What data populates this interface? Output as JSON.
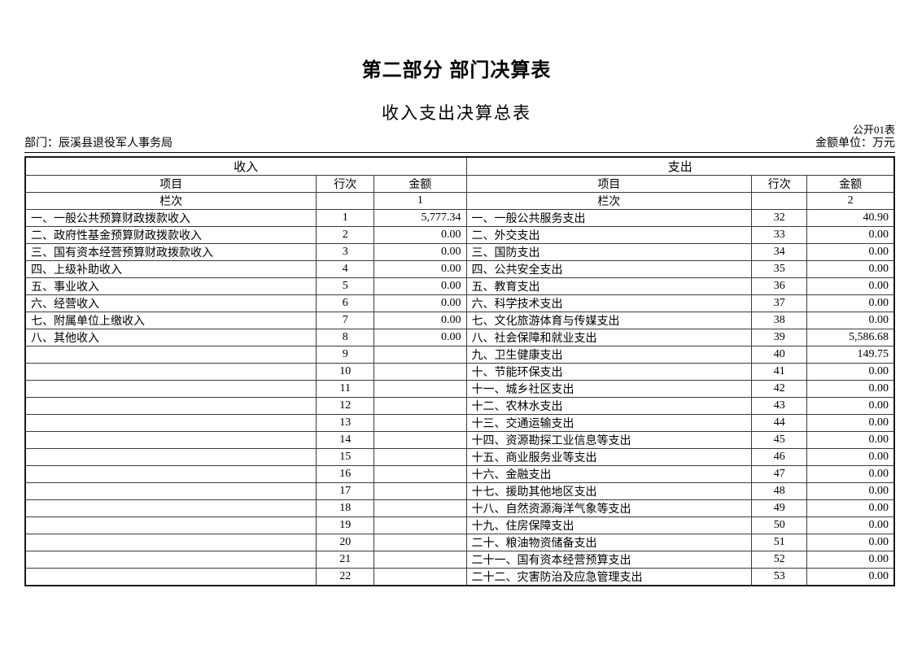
{
  "page": {
    "title": "第二部分 部门决算表",
    "subtitle": "收入支出决算总表",
    "table_code": "公开01表",
    "department_label": "部门：辰溪县退役军人事务局",
    "unit_label": "金额单位：万元"
  },
  "table": {
    "income": {
      "section_title": "收入",
      "headers": {
        "item": "项目",
        "line_no": "行次",
        "amount": "金额"
      },
      "column_label": "栏次",
      "column_no": "1",
      "rows": [
        {
          "item": "一、一般公共预算财政拨款收入",
          "line": "1",
          "amount": "5,777.34"
        },
        {
          "item": "二、政府性基金预算财政拨款收入",
          "line": "2",
          "amount": "0.00"
        },
        {
          "item": "三、国有资本经营预算财政拨款收入",
          "line": "3",
          "amount": "0.00"
        },
        {
          "item": "四、上级补助收入",
          "line": "4",
          "amount": "0.00"
        },
        {
          "item": "五、事业收入",
          "line": "5",
          "amount": "0.00"
        },
        {
          "item": "六、经营收入",
          "line": "6",
          "amount": "0.00"
        },
        {
          "item": "七、附属单位上缴收入",
          "line": "7",
          "amount": "0.00"
        },
        {
          "item": "八、其他收入",
          "line": "8",
          "amount": "0.00"
        },
        {
          "item": "",
          "line": "9",
          "amount": ""
        },
        {
          "item": "",
          "line": "10",
          "amount": ""
        },
        {
          "item": "",
          "line": "11",
          "amount": ""
        },
        {
          "item": "",
          "line": "12",
          "amount": ""
        },
        {
          "item": "",
          "line": "13",
          "amount": ""
        },
        {
          "item": "",
          "line": "14",
          "amount": ""
        },
        {
          "item": "",
          "line": "15",
          "amount": ""
        },
        {
          "item": "",
          "line": "16",
          "amount": ""
        },
        {
          "item": "",
          "line": "17",
          "amount": ""
        },
        {
          "item": "",
          "line": "18",
          "amount": ""
        },
        {
          "item": "",
          "line": "19",
          "amount": ""
        },
        {
          "item": "",
          "line": "20",
          "amount": ""
        },
        {
          "item": "",
          "line": "21",
          "amount": ""
        },
        {
          "item": "",
          "line": "22",
          "amount": ""
        }
      ]
    },
    "expense": {
      "section_title": "支出",
      "headers": {
        "item": "项目",
        "line_no": "行次",
        "amount": "金额"
      },
      "column_label": "栏次",
      "column_no": "2",
      "rows": [
        {
          "item": "一、一般公共服务支出",
          "line": "32",
          "amount": "40.90"
        },
        {
          "item": "二、外交支出",
          "line": "33",
          "amount": "0.00"
        },
        {
          "item": "三、国防支出",
          "line": "34",
          "amount": "0.00"
        },
        {
          "item": "四、公共安全支出",
          "line": "35",
          "amount": "0.00"
        },
        {
          "item": "五、教育支出",
          "line": "36",
          "amount": "0.00"
        },
        {
          "item": "六、科学技术支出",
          "line": "37",
          "amount": "0.00"
        },
        {
          "item": "七、文化旅游体育与传媒支出",
          "line": "38",
          "amount": "0.00"
        },
        {
          "item": "八、社会保障和就业支出",
          "line": "39",
          "amount": "5,586.68"
        },
        {
          "item": "九、卫生健康支出",
          "line": "40",
          "amount": "149.75"
        },
        {
          "item": "十、节能环保支出",
          "line": "41",
          "amount": "0.00"
        },
        {
          "item": "十一、城乡社区支出",
          "line": "42",
          "amount": "0.00"
        },
        {
          "item": "十二、农林水支出",
          "line": "43",
          "amount": "0.00"
        },
        {
          "item": "十三、交通运输支出",
          "line": "44",
          "amount": "0.00"
        },
        {
          "item": "十四、资源勘探工业信息等支出",
          "line": "45",
          "amount": "0.00"
        },
        {
          "item": "十五、商业服务业等支出",
          "line": "46",
          "amount": "0.00"
        },
        {
          "item": "十六、金融支出",
          "line": "47",
          "amount": "0.00"
        },
        {
          "item": "十七、援助其他地区支出",
          "line": "48",
          "amount": "0.00"
        },
        {
          "item": "十八、自然资源海洋气象等支出",
          "line": "49",
          "amount": "0.00"
        },
        {
          "item": "十九、住房保障支出",
          "line": "50",
          "amount": "0.00"
        },
        {
          "item": "二十、粮油物资储备支出",
          "line": "51",
          "amount": "0.00"
        },
        {
          "item": "二十一、国有资本经营预算支出",
          "line": "52",
          "amount": "0.00"
        },
        {
          "item": "二十二、灾害防治及应急管理支出",
          "line": "53",
          "amount": "0.00"
        }
      ]
    }
  }
}
